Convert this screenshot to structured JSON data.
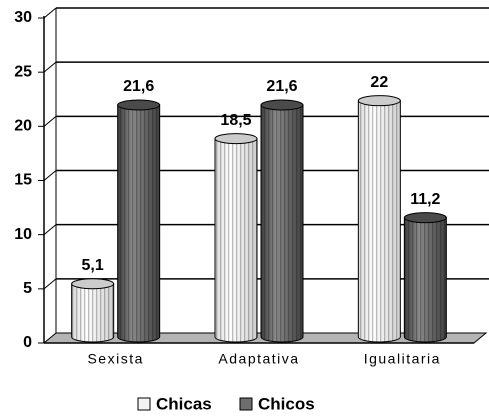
{
  "chart_data": {
    "type": "bar3d",
    "categories": [
      "Sexista",
      "Adaptativa",
      "Igualitaria"
    ],
    "series": [
      {
        "name": "Chicas",
        "color": "#f4f4f4",
        "values": [
          5.1,
          18.5,
          22
        ],
        "value_labels": [
          "5,1",
          "18,5",
          "22"
        ]
      },
      {
        "name": "Chicos",
        "color": "#6e6e6e",
        "values": [
          21.6,
          21.6,
          11.2
        ],
        "value_labels": [
          "21,6",
          "21,6",
          "11,2"
        ]
      }
    ],
    "ylim": [
      0,
      30
    ],
    "yticks": [
      0,
      5,
      10,
      15,
      20,
      25,
      30
    ],
    "grid": true,
    "legend": "bottom"
  }
}
